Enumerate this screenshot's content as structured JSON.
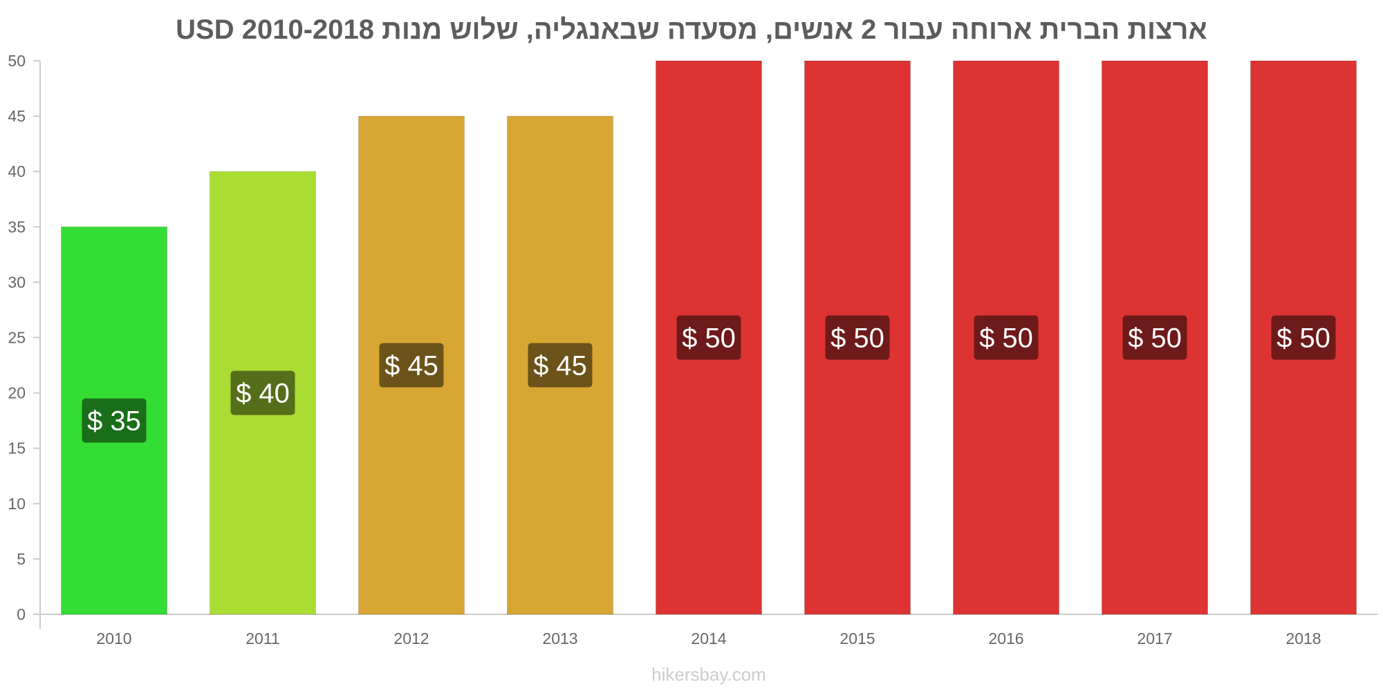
{
  "chart_data": {
    "type": "bar",
    "title": "ארצות הברית ארוחה עבור 2 אנשים, מסעדה שבאנגליה, שלוש מנות USD 2010-2018",
    "categories": [
      "2010",
      "2011",
      "2012",
      "2013",
      "2014",
      "2015",
      "2016",
      "2017",
      "2018"
    ],
    "values": [
      35,
      40,
      45,
      45,
      50,
      50,
      50,
      50,
      50
    ],
    "value_labels": [
      "$ 35",
      "$ 40",
      "$ 45",
      "$ 45",
      "$ 50",
      "$ 50",
      "$ 50",
      "$ 50",
      "$ 50"
    ],
    "y_ticks": [
      0,
      5,
      10,
      15,
      20,
      25,
      30,
      35,
      40,
      45,
      50
    ],
    "ylim": [
      0,
      50
    ],
    "grid": false,
    "legend": "none",
    "bar_colors": [
      "#33dd33",
      "#aadd33",
      "#d8a633",
      "#d8a633",
      "#dd3333",
      "#dd3333",
      "#dd3333",
      "#dd3333",
      "#dd3333"
    ],
    "label_box_colors": [
      "#1a6e1a",
      "#556e1a",
      "#6c531a",
      "#6c531a",
      "#6e1a1a",
      "#6e1a1a",
      "#6e1a1a",
      "#6e1a1a",
      "#6e1a1a"
    ]
  },
  "footer": {
    "source": "hikersbay.com"
  }
}
